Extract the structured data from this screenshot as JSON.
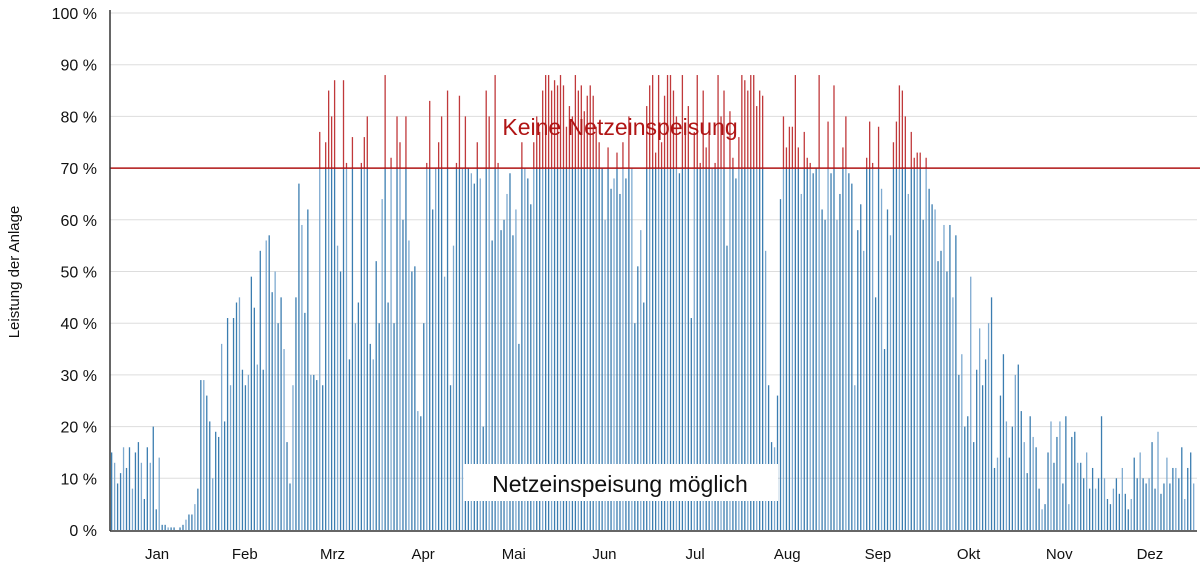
{
  "chart_data": {
    "type": "bar",
    "title": "",
    "xlabel": "",
    "ylabel": "Leistung der Anlage",
    "ylim": [
      0,
      100
    ],
    "yticks": [
      "0 %",
      "10 %",
      "20 %",
      "30 %",
      "40 %",
      "50 %",
      "60 %",
      "70 %",
      "80 %",
      "90 %",
      "100 %"
    ],
    "grid": true,
    "threshold": 70,
    "months": [
      {
        "label": "Jan",
        "days": 31
      },
      {
        "label": "Feb",
        "days": 28
      },
      {
        "label": "Mrz",
        "days": 31
      },
      {
        "label": "Apr",
        "days": 30
      },
      {
        "label": "Mai",
        "days": 31
      },
      {
        "label": "Jun",
        "days": 30
      },
      {
        "label": "Jul",
        "days": 31
      },
      {
        "label": "Aug",
        "days": 31
      },
      {
        "label": "Sep",
        "days": 30
      },
      {
        "label": "Okt",
        "days": 31
      },
      {
        "label": "Nov",
        "days": 30
      },
      {
        "label": "Dez",
        "days": 31
      }
    ],
    "annotations": {
      "above": "Keine Netzeinspeisung",
      "below": "Netzeinspeisung möglich"
    },
    "colors": {
      "below": "#3b7db0",
      "below_light": "#7eaad0",
      "above": "#c0393b",
      "threshold": "#b01515",
      "grid": "#dddddd"
    },
    "values": [
      15,
      13,
      9,
      11,
      16,
      12,
      16,
      8,
      15,
      17,
      13,
      6,
      16,
      13,
      20,
      4,
      14,
      1,
      1,
      0.5,
      0.5,
      0.5,
      0,
      0.5,
      1,
      2,
      3,
      3,
      5,
      8,
      29,
      29,
      26,
      21,
      10,
      19,
      18,
      36,
      21,
      41,
      28,
      41,
      44,
      45,
      31,
      28,
      30,
      49,
      43,
      32,
      54,
      31,
      56,
      57,
      46,
      50,
      40,
      45,
      35,
      17,
      9,
      28,
      45,
      67,
      59,
      42,
      62,
      30,
      30,
      29,
      77,
      28,
      75,
      85,
      80,
      87,
      55,
      50,
      87,
      71,
      33,
      76,
      40,
      44,
      71,
      76,
      80,
      36,
      33,
      52,
      40,
      64,
      88,
      44,
      72,
      40,
      80,
      75,
      60,
      80,
      56,
      50,
      51,
      23,
      22,
      40,
      71,
      83,
      62,
      70,
      75,
      80,
      49,
      85,
      28,
      55,
      71,
      84,
      70,
      80,
      70,
      69,
      67,
      75,
      68,
      20,
      85,
      80,
      56,
      88,
      71,
      58,
      60,
      65,
      69,
      57,
      62,
      36,
      75,
      70,
      68,
      63,
      75,
      80,
      77,
      85,
      88,
      88,
      85,
      87,
      86,
      88,
      86,
      78,
      82,
      80,
      88,
      85,
      86,
      81,
      84,
      86,
      84,
      78,
      75,
      70,
      60,
      74,
      66,
      68,
      73,
      65,
      75,
      68,
      80,
      70,
      40,
      51,
      58,
      44,
      82,
      86,
      88,
      73,
      88,
      75,
      84,
      88,
      88,
      85,
      80,
      69,
      88,
      78,
      82,
      41,
      77,
      88,
      71,
      85,
      74,
      78,
      70,
      71,
      88,
      80,
      85,
      55,
      81,
      72,
      68,
      76,
      88,
      87,
      85,
      88,
      88,
      82,
      85,
      84,
      54,
      28,
      17,
      16,
      26,
      64,
      80,
      74,
      78,
      78,
      88,
      74,
      65,
      77,
      72,
      71,
      69,
      70,
      88,
      62,
      60,
      79,
      69,
      86,
      60,
      65,
      74,
      80,
      69,
      67,
      28,
      58,
      63,
      54,
      72,
      79,
      71,
      45,
      78,
      66,
      35,
      62,
      57,
      75,
      79,
      86,
      85,
      80,
      65,
      77,
      72,
      73,
      73,
      60,
      72,
      66,
      63,
      62,
      52,
      54,
      59,
      50,
      59,
      45,
      57,
      30,
      34,
      20,
      22,
      49,
      17,
      31,
      39,
      28,
      33,
      40,
      45,
      12,
      14,
      26,
      34,
      21,
      14,
      20,
      30,
      32,
      23,
      17,
      11,
      22,
      18,
      16,
      8,
      4,
      5,
      15,
      21,
      13,
      18,
      21,
      9,
      22,
      5,
      18,
      19,
      13,
      13,
      10,
      15,
      8,
      12,
      8,
      10,
      22,
      10,
      6,
      5,
      8,
      10,
      7,
      12,
      7,
      4,
      6,
      14,
      10,
      15,
      10,
      9,
      10,
      17,
      8,
      19,
      7,
      9,
      14,
      9,
      12,
      12,
      10,
      16,
      6,
      12,
      15,
      9
    ]
  }
}
